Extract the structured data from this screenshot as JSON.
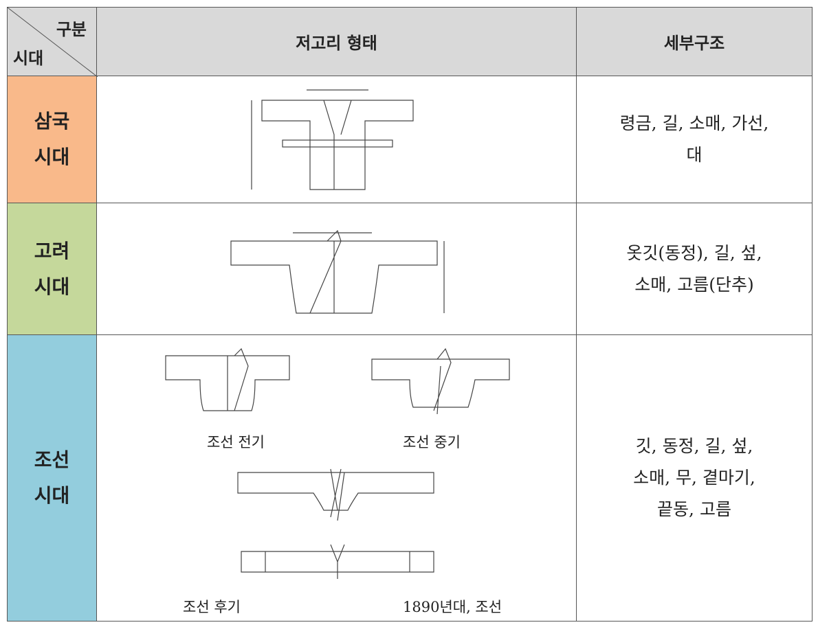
{
  "table": {
    "corner": {
      "top": "구분",
      "bottom": "시대"
    },
    "headers": [
      "저고리 형태",
      "세부구조"
    ],
    "rows": [
      {
        "period": [
          "삼국",
          "시대"
        ],
        "detail": [
          "령금, 길, 소매, 가선,",
          "대"
        ]
      },
      {
        "period": [
          "고려",
          "시대"
        ],
        "detail": [
          "옷깃(동정), 길, 섶,",
          "소매, 고름(단추)"
        ]
      },
      {
        "period": [
          "조선",
          "시대"
        ],
        "detail": [
          "깃, 동정, 길, 섶,",
          "소매, 무, 곁마기,",
          "끝동, 고름"
        ],
        "captions": [
          "조선 전기",
          "조선 중기",
          "조선 후기",
          "1890년대, 조선"
        ]
      }
    ]
  }
}
